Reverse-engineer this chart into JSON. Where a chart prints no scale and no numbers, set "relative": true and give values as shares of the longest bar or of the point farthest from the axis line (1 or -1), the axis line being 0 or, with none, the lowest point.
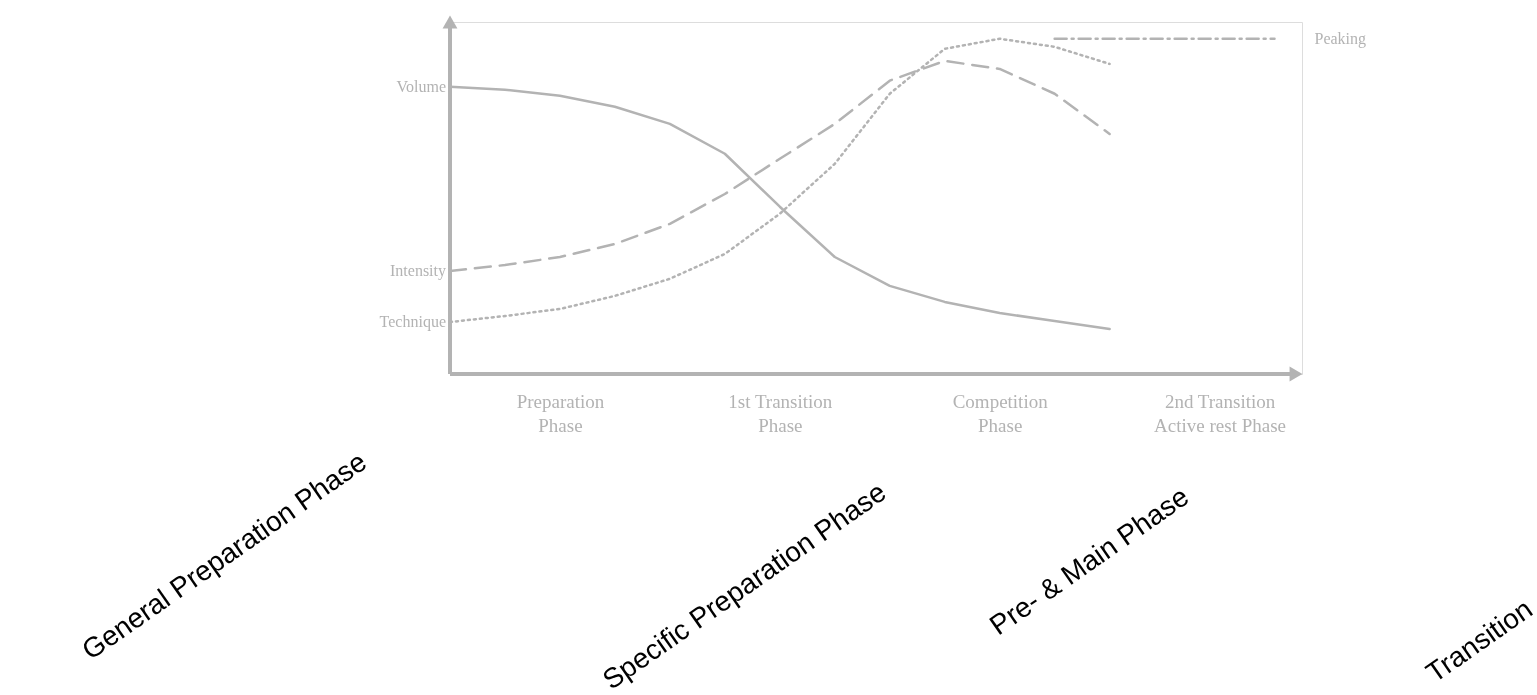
{
  "chart_data": {
    "type": "line",
    "relative": true,
    "tick_labels": "x",
    "categories": [
      null,
      null,
      "Preparation\nPhase",
      null,
      null,
      null,
      "1st Transition\nPhase",
      null,
      null,
      null,
      "Competition\nPhase",
      null,
      null,
      null,
      "2nd Transition\nActive rest Phase",
      null
    ],
    "series": [
      {
        "name": "Volume",
        "color": "#b3b3b3",
        "line_style": "solid",
        "values": [
          0.857,
          0.848,
          0.83,
          0.797,
          0.746,
          0.657,
          0.499,
          0.349,
          0.263,
          0.215,
          0.182,
          0.158,
          0.134,
          null,
          null,
          null
        ]
      },
      {
        "name": "Intensity",
        "color": "#b3b3b3",
        "line_style": "dashed",
        "values": [
          0.307,
          0.325,
          0.349,
          0.388,
          0.448,
          0.537,
          0.642,
          0.746,
          0.875,
          0.934,
          0.91,
          0.836,
          0.716,
          null,
          null,
          null
        ]
      },
      {
        "name": "Technique",
        "color": "#b3b3b3",
        "line_style": "dotted",
        "values": [
          0.155,
          0.173,
          0.194,
          0.233,
          0.284,
          0.358,
          0.478,
          0.627,
          0.836,
          0.97,
          1.0,
          0.976,
          0.925,
          null,
          null,
          null
        ]
      },
      {
        "name": "Peaking",
        "color": "#b3b3b3",
        "line_style": "dashdot",
        "values": [
          null,
          null,
          null,
          null,
          null,
          null,
          null,
          null,
          null,
          null,
          null,
          1.0,
          1.0,
          1.0,
          1.0,
          1.0
        ]
      }
    ],
    "annotations": [
      "General Preparation Phase",
      "Specific Preparation Phase",
      "Pre- & Main Phase",
      "Transition"
    ]
  }
}
